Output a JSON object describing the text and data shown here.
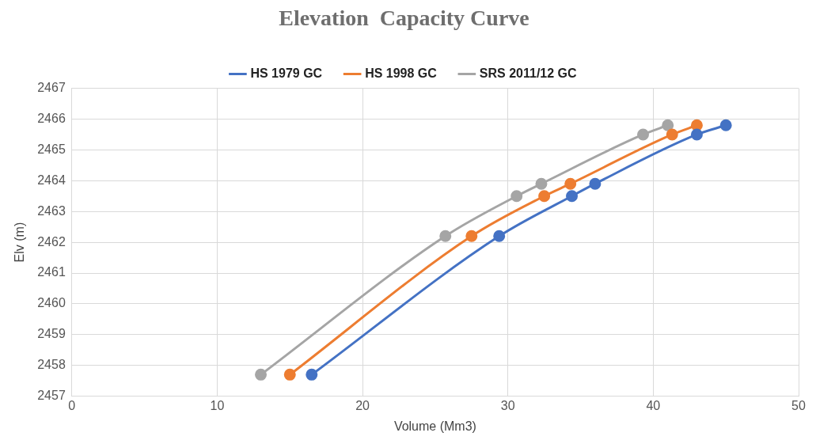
{
  "chart_data": {
    "type": "line",
    "title": "Elevation  Capacity Curve",
    "xlabel": "Volume (Mm3)",
    "ylabel": "Elv (m)",
    "series": [
      {
        "name": "HS 1979 GC",
        "color": "#4472c4",
        "x": [
          16.5,
          29.4,
          34.4,
          36.0,
          43.0,
          45.0
        ],
        "values": [
          2457.7,
          2462.2,
          2463.5,
          2463.9,
          2465.5,
          2465.8
        ]
      },
      {
        "name": "HS 1998 GC",
        "color": "#ed7d31",
        "x": [
          15.0,
          27.5,
          32.5,
          34.3,
          41.3,
          43.0
        ],
        "values": [
          2457.7,
          2462.2,
          2463.5,
          2463.9,
          2465.5,
          2465.8
        ]
      },
      {
        "name": "SRS 2011/12 GC",
        "color": "#a5a5a5",
        "x": [
          13.0,
          25.7,
          30.6,
          32.3,
          39.3,
          41.0
        ],
        "values": [
          2457.7,
          2462.2,
          2463.5,
          2463.9,
          2465.5,
          2465.8
        ]
      }
    ],
    "xlim": [
      0,
      50
    ],
    "xticks": [
      0,
      10,
      20,
      30,
      40,
      50
    ],
    "ylim": [
      2457,
      2467
    ],
    "yticks": [
      2457,
      2458,
      2459,
      2460,
      2461,
      2462,
      2463,
      2464,
      2465,
      2466,
      2467
    ],
    "grid": true,
    "legend": "top",
    "marker": "circle",
    "line_style": "solid"
  }
}
